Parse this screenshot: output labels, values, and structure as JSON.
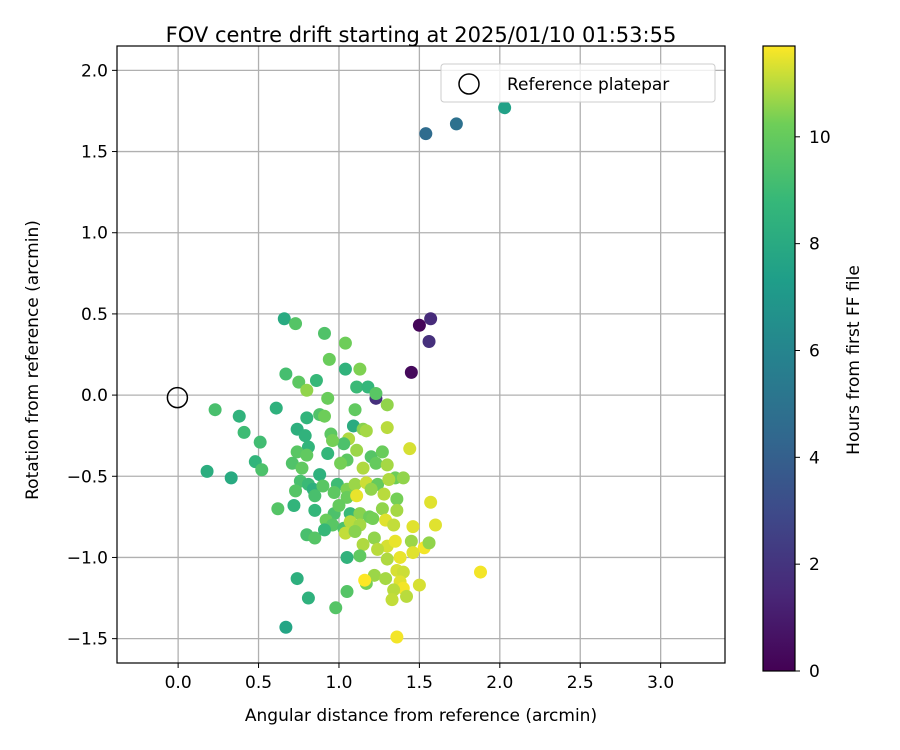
{
  "chart_data": {
    "type": "scatter",
    "title": "FOV centre drift starting at 2025/01/10 01:53:55",
    "xlabel": "Angular distance from reference (arcmin)",
    "ylabel": "Rotation from reference (arcmin)",
    "xlim": [
      -0.38,
      3.4
    ],
    "ylim": [
      -1.65,
      2.15
    ],
    "xticks": [
      "0.0",
      "0.5",
      "1.0",
      "1.5",
      "2.0",
      "2.5",
      "3.0"
    ],
    "yticks": [
      "−1.5",
      "−1.0",
      "−0.5",
      "0.0",
      "0.5",
      "1.0",
      "1.5",
      "2.0"
    ],
    "grid": true,
    "legend": {
      "placement": "top-right",
      "entries": [
        "Reference platepar"
      ]
    },
    "reference_point": {
      "x": 0.0,
      "y": 0.0,
      "label": "Reference platepar"
    },
    "colorbar": {
      "label": "Hours from first FF file",
      "min": 0,
      "max": 11.7,
      "ticks": [
        "0",
        "2",
        "4",
        "6",
        "8",
        "10"
      ],
      "colormap": "viridis"
    },
    "series": [
      {
        "points": [
          [
            1.5,
            0.43,
            0.2
          ],
          [
            1.45,
            0.14,
            0.3
          ],
          [
            1.57,
            0.47,
            1.6
          ],
          [
            1.56,
            0.33,
            1.8
          ],
          [
            1.23,
            -0.02,
            1.8
          ],
          [
            1.54,
            1.61,
            4.6
          ],
          [
            1.73,
            1.67,
            4.9
          ],
          [
            2.03,
            1.77,
            7.5
          ],
          [
            0.66,
            0.47,
            8.0
          ],
          [
            0.73,
            0.44,
            9.6
          ],
          [
            0.91,
            0.38,
            9.5
          ],
          [
            1.04,
            0.32,
            10.2
          ],
          [
            0.94,
            0.22,
            10.1
          ],
          [
            1.04,
            0.16,
            8.5
          ],
          [
            1.13,
            0.16,
            10.4
          ],
          [
            0.67,
            0.13,
            9.2
          ],
          [
            0.75,
            0.08,
            9.8
          ],
          [
            0.8,
            0.03,
            10.6
          ],
          [
            0.86,
            0.09,
            8.8
          ],
          [
            1.11,
            0.05,
            8.9
          ],
          [
            1.18,
            0.05,
            8.7
          ],
          [
            1.23,
            0.01,
            9.7
          ],
          [
            0.93,
            -0.02,
            10.1
          ],
          [
            1.3,
            -0.06,
            10.6
          ],
          [
            0.61,
            -0.08,
            8.4
          ],
          [
            1.1,
            -0.09,
            9.9
          ],
          [
            0.8,
            -0.14,
            8.6
          ],
          [
            0.88,
            -0.12,
            9.5
          ],
          [
            0.91,
            -0.13,
            10.2
          ],
          [
            1.09,
            -0.19,
            8.1
          ],
          [
            1.15,
            -0.21,
            10.5
          ],
          [
            1.3,
            -0.2,
            11.0
          ],
          [
            0.74,
            -0.21,
            8.3
          ],
          [
            0.79,
            -0.25,
            8.5
          ],
          [
            0.95,
            -0.24,
            9.8
          ],
          [
            1.06,
            -0.27,
            10.9
          ],
          [
            1.03,
            -0.3,
            9.4
          ],
          [
            1.17,
            -0.22,
            10.8
          ],
          [
            0.81,
            -0.32,
            8.6
          ],
          [
            0.96,
            -0.28,
            10.3
          ],
          [
            1.11,
            -0.34,
            10.7
          ],
          [
            1.2,
            -0.38,
            9.6
          ],
          [
            1.27,
            -0.35,
            10.1
          ],
          [
            0.74,
            -0.35,
            9.7
          ],
          [
            0.8,
            -0.37,
            9.9
          ],
          [
            0.93,
            -0.36,
            8.7
          ],
          [
            1.05,
            -0.4,
            9.8
          ],
          [
            1.23,
            -0.42,
            10.0
          ],
          [
            1.44,
            -0.33,
            11.3
          ],
          [
            0.71,
            -0.42,
            9.5
          ],
          [
            0.77,
            -0.45,
            9.9
          ],
          [
            0.88,
            -0.49,
            8.4
          ],
          [
            1.01,
            -0.42,
            10.3
          ],
          [
            1.15,
            -0.45,
            10.9
          ],
          [
            1.3,
            -0.43,
            10.8
          ],
          [
            1.35,
            -0.51,
            10.2
          ],
          [
            1.4,
            -0.51,
            10.6
          ],
          [
            0.76,
            -0.53,
            9.3
          ],
          [
            0.81,
            -0.55,
            8.9
          ],
          [
            0.84,
            -0.58,
            8.3
          ],
          [
            0.9,
            -0.56,
            9.7
          ],
          [
            0.99,
            -0.55,
            9.0
          ],
          [
            1.05,
            -0.58,
            10.4
          ],
          [
            1.1,
            -0.55,
            10.7
          ],
          [
            1.17,
            -0.54,
            11.2
          ],
          [
            1.24,
            -0.55,
            10.0
          ],
          [
            1.31,
            -0.52,
            10.9
          ],
          [
            0.73,
            -0.59,
            9.6
          ],
          [
            0.85,
            -0.62,
            9.3
          ],
          [
            0.97,
            -0.6,
            9.8
          ],
          [
            1.05,
            -0.63,
            10.1
          ],
          [
            1.11,
            -0.62,
            11.5
          ],
          [
            1.2,
            -0.58,
            10.6
          ],
          [
            1.28,
            -0.61,
            11.0
          ],
          [
            1.36,
            -0.64,
            10.3
          ],
          [
            1.57,
            -0.66,
            11.4
          ],
          [
            0.62,
            -0.7,
            9.6
          ],
          [
            0.72,
            -0.68,
            8.6
          ],
          [
            0.85,
            -0.71,
            8.7
          ],
          [
            0.97,
            -0.73,
            9.4
          ],
          [
            1.0,
            -0.68,
            10.0
          ],
          [
            1.07,
            -0.73,
            8.9
          ],
          [
            1.13,
            -0.73,
            10.5
          ],
          [
            1.19,
            -0.75,
            10.2
          ],
          [
            1.27,
            -0.7,
            10.6
          ],
          [
            1.29,
            -0.77,
            11.4
          ],
          [
            1.36,
            -0.71,
            10.8
          ],
          [
            1.6,
            -0.8,
            11.4
          ],
          [
            0.92,
            -0.77,
            10.1
          ],
          [
            0.96,
            -0.8,
            9.7
          ],
          [
            1.03,
            -0.82,
            9.4
          ],
          [
            1.07,
            -0.78,
            11.0
          ],
          [
            1.13,
            -0.8,
            10.8
          ],
          [
            1.21,
            -0.76,
            10.3
          ],
          [
            1.34,
            -0.8,
            11.1
          ],
          [
            1.46,
            -0.81,
            11.4
          ],
          [
            0.8,
            -0.86,
            9.3
          ],
          [
            0.85,
            -0.88,
            9.6
          ],
          [
            0.91,
            -0.83,
            8.8
          ],
          [
            1.04,
            -0.85,
            11.1
          ],
          [
            1.1,
            -0.84,
            10.5
          ],
          [
            1.15,
            -0.92,
            10.9
          ],
          [
            1.22,
            -0.88,
            10.6
          ],
          [
            1.3,
            -0.93,
            11.3
          ],
          [
            1.35,
            -0.9,
            11.5
          ],
          [
            1.45,
            -0.9,
            10.7
          ],
          [
            1.53,
            -0.94,
            11.6
          ],
          [
            1.56,
            -0.91,
            10.6
          ],
          [
            1.05,
            -1.0,
            8.5
          ],
          [
            1.13,
            -0.99,
            9.9
          ],
          [
            1.24,
            -0.95,
            11.0
          ],
          [
            1.3,
            -1.01,
            10.9
          ],
          [
            1.38,
            -1.0,
            11.5
          ],
          [
            1.46,
            -0.97,
            11.4
          ],
          [
            0.74,
            -1.13,
            8.3
          ],
          [
            1.05,
            -1.21,
            9.6
          ],
          [
            1.17,
            -1.16,
            10.3
          ],
          [
            1.22,
            -1.11,
            10.7
          ],
          [
            1.36,
            -1.08,
            11.3
          ],
          [
            1.4,
            -1.09,
            11.2
          ],
          [
            1.88,
            -1.09,
            11.6
          ],
          [
            1.16,
            -1.14,
            11.7
          ],
          [
            1.29,
            -1.13,
            10.8
          ],
          [
            1.38,
            -1.15,
            11.4
          ],
          [
            1.4,
            -1.19,
            11.6
          ],
          [
            1.5,
            -1.17,
            11.3
          ],
          [
            1.34,
            -1.2,
            11.0
          ],
          [
            0.81,
            -1.25,
            8.4
          ],
          [
            0.98,
            -1.31,
            9.6
          ],
          [
            1.33,
            -1.26,
            11.1
          ],
          [
            1.42,
            -1.24,
            11.0
          ],
          [
            0.67,
            -1.43,
            7.7
          ],
          [
            1.36,
            -1.49,
            11.6
          ],
          [
            0.18,
            -0.47,
            8.2
          ],
          [
            0.33,
            -0.51,
            8.0
          ],
          [
            0.23,
            -0.09,
            9.3
          ],
          [
            0.38,
            -0.13,
            8.5
          ],
          [
            0.41,
            -0.23,
            9.0
          ],
          [
            0.51,
            -0.29,
            9.1
          ],
          [
            0.48,
            -0.41,
            8.6
          ],
          [
            0.52,
            -0.46,
            9.4
          ]
        ]
      }
    ]
  }
}
